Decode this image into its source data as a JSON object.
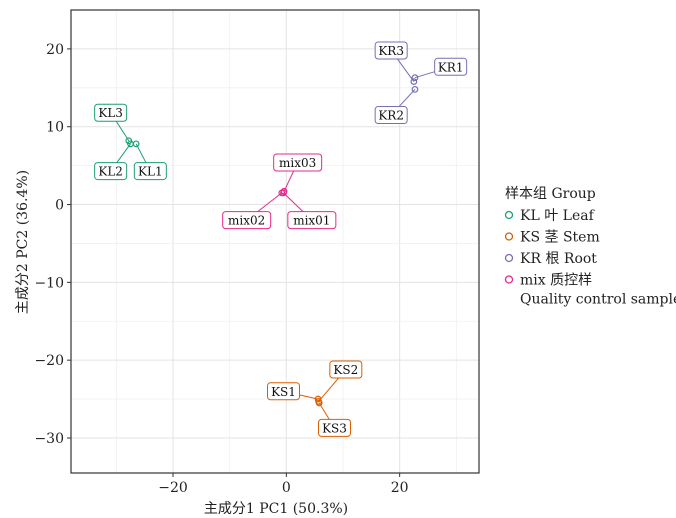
{
  "chart_data": {
    "type": "scatter",
    "title": "",
    "xlabel": "主成分1 PC1 (50.3%)",
    "ylabel": "主成分2 PC2 (36.4%)",
    "xlim": [
      -38,
      34
    ],
    "ylim": [
      -34.5,
      25
    ],
    "xticks": [
      -20,
      0,
      20
    ],
    "yticks": [
      20,
      10,
      0,
      -10,
      -20,
      -30
    ],
    "grid": true,
    "legend": {
      "title": "样本组 Group",
      "placement": "right",
      "entries": [
        {
          "text": "KL 叶 Leaf",
          "color": "#1b9e77"
        },
        {
          "text": "KS 茎 Stem",
          "color": "#d95f02"
        },
        {
          "text": "KR 根 Root",
          "color": "#7570b3"
        },
        {
          "text": "mix 质控样",
          "text2": "Quality control samples",
          "color": "#e7298a"
        }
      ]
    },
    "series": [
      {
        "group": "KL",
        "color": "#1b9e77",
        "points": [
          {
            "label": "KL1",
            "x": -26.5,
            "y": 7.8,
            "lx": -24.0,
            "ly": 4.3
          },
          {
            "label": "KL2",
            "x": -27.5,
            "y": 7.8,
            "lx": -31.0,
            "ly": 4.3
          },
          {
            "label": "KL3",
            "x": -27.8,
            "y": 8.2,
            "lx": -31.0,
            "ly": 11.8
          }
        ]
      },
      {
        "group": "KS",
        "color": "#d95f02",
        "points": [
          {
            "label": "KS1",
            "x": 5.6,
            "y": -25.0,
            "lx": -0.5,
            "ly": -24.0
          },
          {
            "label": "KS2",
            "x": 5.7,
            "y": -25.3,
            "lx": 10.5,
            "ly": -21.2
          },
          {
            "label": "KS3",
            "x": 5.8,
            "y": -25.5,
            "lx": 8.5,
            "ly": -28.7
          }
        ]
      },
      {
        "group": "KR",
        "color": "#7570b3",
        "points": [
          {
            "label": "KR1",
            "x": 22.7,
            "y": 16.3,
            "lx": 29.0,
            "ly": 17.7
          },
          {
            "label": "KR2",
            "x": 22.7,
            "y": 14.8,
            "lx": 18.5,
            "ly": 11.5
          },
          {
            "label": "KR3",
            "x": 22.5,
            "y": 15.8,
            "lx": 18.5,
            "ly": 19.8
          }
        ]
      },
      {
        "group": "mix",
        "color": "#e7298a",
        "points": [
          {
            "label": "mix01",
            "x": -0.5,
            "y": 1.5,
            "lx": 4.5,
            "ly": -2.0
          },
          {
            "label": "mix02",
            "x": -0.8,
            "y": 1.5,
            "lx": -7.0,
            "ly": -2.0
          },
          {
            "label": "mix03",
            "x": -0.4,
            "y": 1.7,
            "lx": 2.0,
            "ly": 5.4
          }
        ]
      }
    ]
  }
}
